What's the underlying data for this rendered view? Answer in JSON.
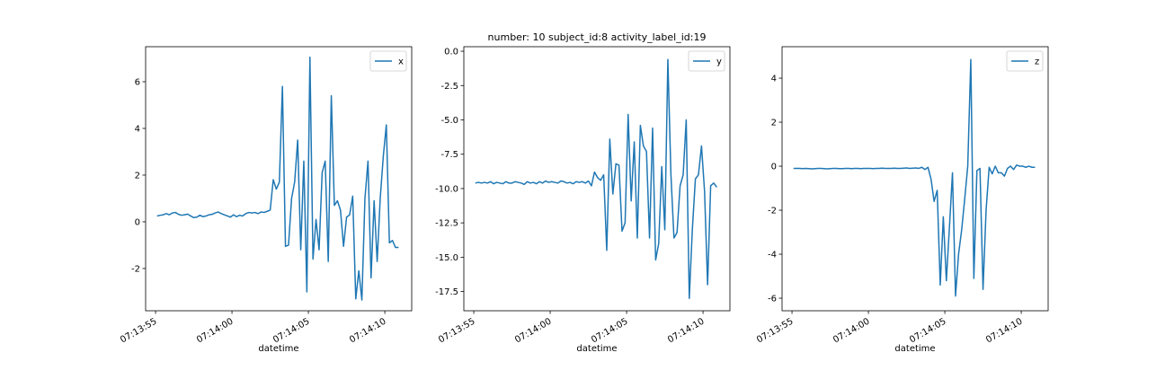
{
  "chart_data": [
    {
      "type": "line",
      "xlabel": "datetime",
      "legend": "upper right",
      "x": [
        26035.1,
        26035.3,
        26035.5,
        26035.7,
        26035.9,
        26036.1,
        26036.3,
        26036.5,
        26036.7,
        26036.9,
        26037.1,
        26037.3,
        26037.5,
        26037.7,
        26037.9,
        26038.1,
        26038.3,
        26038.5,
        26038.7,
        26038.9,
        26039.1,
        26039.3,
        26039.5,
        26039.7,
        26039.9,
        26040.1,
        26040.3,
        26040.5,
        26040.7,
        26040.9,
        26041.1,
        26041.3,
        26041.5,
        26041.7,
        26041.9,
        26042.1,
        26042.3,
        26042.5,
        26042.7,
        26042.9,
        26043.1,
        26043.3,
        26043.5,
        26043.7,
        26043.9,
        26044.1,
        26044.3,
        26044.5,
        26044.7,
        26044.9,
        26045.1,
        26045.3,
        26045.5,
        26045.7,
        26045.9,
        26046.1,
        26046.3,
        26046.5,
        26046.7,
        26046.9,
        26047.1,
        26047.3,
        26047.5,
        26047.7,
        26047.9,
        26048.1,
        26048.3,
        26048.5,
        26048.7,
        26048.9,
        26049.1,
        26049.3,
        26049.5,
        26049.7,
        26049.9,
        26050.1,
        26050.3,
        26050.5,
        26050.7,
        26050.9
      ],
      "series": [
        {
          "name": "x",
          "color": "#1f77b4",
          "values": [
            0.25,
            0.28,
            0.3,
            0.35,
            0.3,
            0.38,
            0.4,
            0.32,
            0.28,
            0.3,
            0.33,
            0.25,
            0.18,
            0.2,
            0.28,
            0.22,
            0.25,
            0.3,
            0.32,
            0.38,
            0.42,
            0.35,
            0.3,
            0.25,
            0.2,
            0.3,
            0.22,
            0.28,
            0.25,
            0.35,
            0.4,
            0.38,
            0.4,
            0.35,
            0.42,
            0.4,
            0.45,
            0.5,
            1.8,
            1.4,
            1.7,
            5.8,
            -1.05,
            -1.0,
            1.0,
            1.7,
            3.5,
            -1.2,
            2.6,
            -3.0,
            7.05,
            -1.6,
            0.1,
            -1.2,
            2.1,
            2.6,
            -1.7,
            5.4,
            0.7,
            0.9,
            0.5,
            -1.05,
            0.2,
            0.3,
            1.1,
            -3.3,
            -2.1,
            -3.35,
            1.0,
            2.6,
            -2.4,
            0.9,
            -1.7,
            1.0,
            2.8,
            4.15,
            -0.9,
            -0.8,
            -1.1,
            -1.1
          ]
        }
      ],
      "xlim": [
        26034.35,
        26051.76
      ],
      "xticks": [
        {
          "value": 26035,
          "label": "07:13:55"
        },
        {
          "value": 26040,
          "label": "07:14:00"
        },
        {
          "value": 26045,
          "label": "07:14:05"
        },
        {
          "value": 26050,
          "label": "07:14:10"
        }
      ],
      "ylim": [
        -3.81,
        7.5
      ],
      "yticks": [
        -2,
        0,
        2,
        4,
        6
      ]
    },
    {
      "type": "line",
      "title": "number: 10 subject_id:8 activity_label_id:19",
      "xlabel": "datetime",
      "legend": "upper right",
      "x": [
        26035.1,
        26035.3,
        26035.5,
        26035.7,
        26035.9,
        26036.1,
        26036.3,
        26036.5,
        26036.7,
        26036.9,
        26037.1,
        26037.3,
        26037.5,
        26037.7,
        26037.9,
        26038.1,
        26038.3,
        26038.5,
        26038.7,
        26038.9,
        26039.1,
        26039.3,
        26039.5,
        26039.7,
        26039.9,
        26040.1,
        26040.3,
        26040.5,
        26040.7,
        26040.9,
        26041.1,
        26041.3,
        26041.5,
        26041.7,
        26041.9,
        26042.1,
        26042.3,
        26042.5,
        26042.7,
        26042.9,
        26043.1,
        26043.3,
        26043.5,
        26043.7,
        26043.9,
        26044.1,
        26044.3,
        26044.5,
        26044.7,
        26044.9,
        26045.1,
        26045.3,
        26045.5,
        26045.7,
        26045.9,
        26046.1,
        26046.3,
        26046.5,
        26046.7,
        26046.9,
        26047.1,
        26047.3,
        26047.5,
        26047.7,
        26047.9,
        26048.1,
        26048.3,
        26048.5,
        26048.7,
        26048.9,
        26049.1,
        26049.3,
        26049.5,
        26049.7,
        26049.9,
        26050.1,
        26050.3,
        26050.5,
        26050.7,
        26050.9
      ],
      "series": [
        {
          "name": "y",
          "color": "#1f77b4",
          "values": [
            -9.6,
            -9.55,
            -9.6,
            -9.55,
            -9.6,
            -9.5,
            -9.65,
            -9.55,
            -9.6,
            -9.65,
            -9.5,
            -9.6,
            -9.6,
            -9.5,
            -9.55,
            -9.6,
            -9.7,
            -9.5,
            -9.6,
            -9.55,
            -9.65,
            -9.5,
            -9.6,
            -9.45,
            -9.55,
            -9.5,
            -9.55,
            -9.6,
            -9.45,
            -9.5,
            -9.6,
            -9.55,
            -9.65,
            -9.5,
            -9.55,
            -9.5,
            -9.6,
            -9.45,
            -9.8,
            -8.8,
            -9.2,
            -9.4,
            -9.0,
            -14.5,
            -6.4,
            -10.4,
            -8.2,
            -8.3,
            -13.1,
            -12.5,
            -4.6,
            -10.9,
            -6.6,
            -13.6,
            -5.4,
            -6.9,
            -7.3,
            -13.6,
            -5.6,
            -15.2,
            -14.0,
            -8.4,
            -13.0,
            -0.6,
            -9.0,
            -13.6,
            -13.2,
            -9.8,
            -9.0,
            -5.0,
            -18.0,
            -13.0,
            -9.3,
            -9.0,
            -6.9,
            -10.2,
            -17.0,
            -9.8,
            -9.6,
            -9.9
          ]
        }
      ],
      "xlim": [
        26034.35,
        26051.76
      ],
      "xticks": [
        {
          "value": 26035,
          "label": "07:13:55"
        },
        {
          "value": 26040,
          "label": "07:14:00"
        },
        {
          "value": 26045,
          "label": "07:14:05"
        },
        {
          "value": 26050,
          "label": "07:14:10"
        }
      ],
      "ylim": [
        -18.9,
        0.33
      ],
      "yticks": [
        {
          "value": -17.5,
          "label": "-17.5"
        },
        {
          "value": -15,
          "label": "-15.0"
        },
        {
          "value": -12.5,
          "label": "-12.5"
        },
        {
          "value": -10,
          "label": "-10.0"
        },
        {
          "value": -7.5,
          "label": "-7.5"
        },
        {
          "value": -5,
          "label": "-5.0"
        },
        {
          "value": -2.5,
          "label": "-2.5"
        },
        {
          "value": 0,
          "label": "0.0"
        }
      ]
    },
    {
      "type": "line",
      "xlabel": "datetime",
      "legend": "upper right",
      "x": [
        26035.1,
        26035.3,
        26035.5,
        26035.7,
        26035.9,
        26036.1,
        26036.3,
        26036.5,
        26036.7,
        26036.9,
        26037.1,
        26037.3,
        26037.5,
        26037.7,
        26037.9,
        26038.1,
        26038.3,
        26038.5,
        26038.7,
        26038.9,
        26039.1,
        26039.3,
        26039.5,
        26039.7,
        26039.9,
        26040.1,
        26040.3,
        26040.5,
        26040.7,
        26040.9,
        26041.1,
        26041.3,
        26041.5,
        26041.7,
        26041.9,
        26042.1,
        26042.3,
        26042.5,
        26042.7,
        26042.9,
        26043.1,
        26043.3,
        26043.5,
        26043.7,
        26043.9,
        26044.1,
        26044.3,
        26044.5,
        26044.7,
        26044.9,
        26045.1,
        26045.3,
        26045.5,
        26045.7,
        26045.9,
        26046.1,
        26046.3,
        26046.5,
        26046.7,
        26046.9,
        26047.1,
        26047.3,
        26047.5,
        26047.7,
        26047.9,
        26048.1,
        26048.3,
        26048.5,
        26048.7,
        26048.9,
        26049.1,
        26049.3,
        26049.5,
        26049.7,
        26049.9,
        26050.1,
        26050.3,
        26050.5,
        26050.7,
        26050.9
      ],
      "series": [
        {
          "name": "z",
          "color": "#1f77b4",
          "values": [
            -0.1,
            -0.1,
            -0.1,
            -0.11,
            -0.1,
            -0.11,
            -0.12,
            -0.11,
            -0.1,
            -0.1,
            -0.11,
            -0.12,
            -0.11,
            -0.1,
            -0.1,
            -0.11,
            -0.11,
            -0.1,
            -0.1,
            -0.11,
            -0.1,
            -0.1,
            -0.11,
            -0.1,
            -0.1,
            -0.1,
            -0.11,
            -0.1,
            -0.1,
            -0.09,
            -0.1,
            -0.1,
            -0.1,
            -0.09,
            -0.1,
            -0.1,
            -0.09,
            -0.08,
            -0.1,
            -0.09,
            -0.08,
            -0.1,
            -0.05,
            -0.15,
            -0.05,
            -0.6,
            -1.6,
            -1.1,
            -5.4,
            -2.3,
            -5.2,
            -2.8,
            -0.3,
            -5.9,
            -4.0,
            -2.9,
            -1.5,
            0.0,
            4.85,
            -5.1,
            -0.2,
            -0.1,
            -5.6,
            -2.0,
            -0.05,
            -0.35,
            0.0,
            -0.3,
            -0.3,
            -0.45,
            -0.1,
            0.0,
            -0.15,
            0.05,
            0.0,
            0.0,
            -0.05,
            0.0,
            -0.05,
            -0.05
          ]
        }
      ],
      "xlim": [
        26034.35,
        26051.76
      ],
      "xticks": [
        {
          "value": 26035,
          "label": "07:13:55"
        },
        {
          "value": 26040,
          "label": "07:14:00"
        },
        {
          "value": 26045,
          "label": "07:14:05"
        },
        {
          "value": 26050,
          "label": "07:14:10"
        }
      ],
      "ylim": [
        -6.57,
        5.43
      ],
      "yticks": [
        -6,
        -4,
        -2,
        0,
        2,
        4
      ]
    }
  ]
}
